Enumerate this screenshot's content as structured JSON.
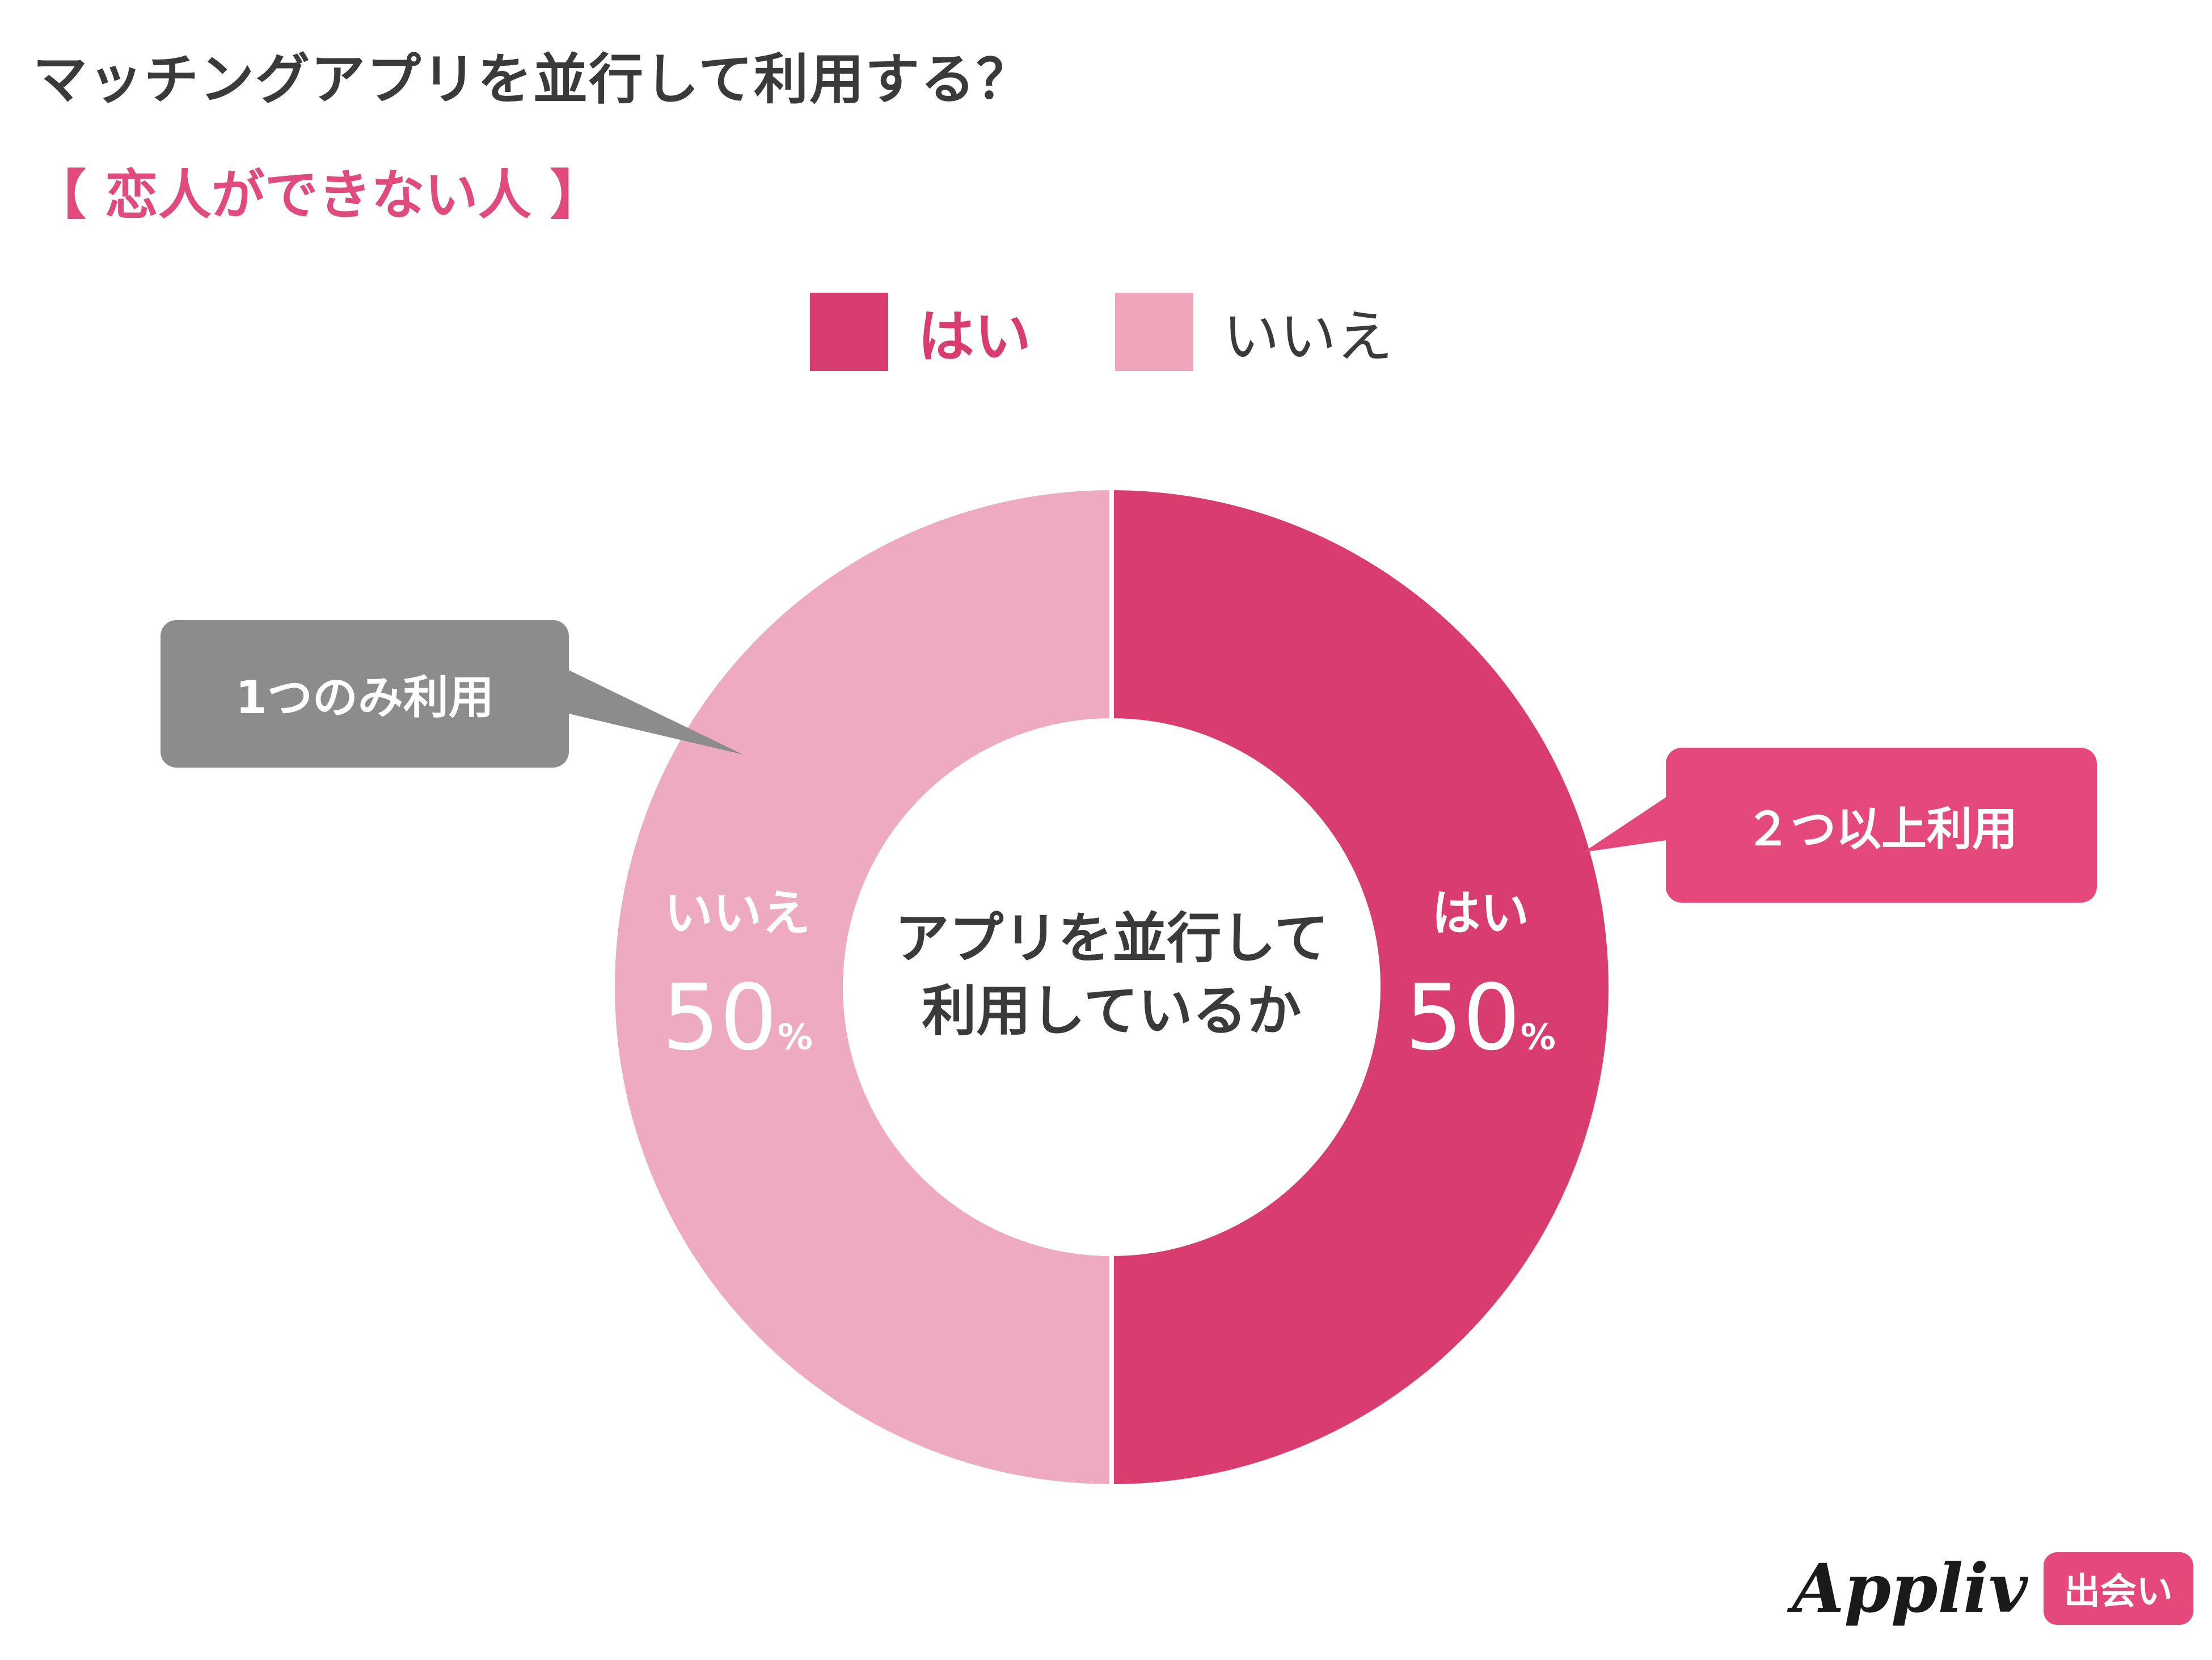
{
  "title": "マッチングアプリを並行して利用する？",
  "subtitle": "【 恋人ができない人 】",
  "legend": [
    {
      "label": "はい",
      "color": "#d93c6e"
    },
    {
      "label": "いいえ",
      "color": "#f0a5bb"
    }
  ],
  "chart_data": {
    "type": "pie",
    "title": "マッチングアプリを並行して利用する？",
    "subtitle": "【 恋人ができない人 】",
    "center_label_lines": [
      "アプリを並行して",
      "利用しているか"
    ],
    "unit": "%",
    "donut": true,
    "legend_position": "top",
    "slices": [
      {
        "label": "はい",
        "value": 50,
        "color": "#d93c6e",
        "annotation": "２つ以上利用"
      },
      {
        "label": "いいえ",
        "value": 50,
        "color": "#eeaac0",
        "annotation": "1つのみ利用"
      }
    ]
  },
  "callouts": {
    "left": "1つのみ利用",
    "right": "２つ以上利用"
  },
  "slice_labels": {
    "yes": {
      "label": "はい",
      "value": "50",
      "unit": "%"
    },
    "no": {
      "label": "いいえ",
      "value": "50",
      "unit": "%"
    }
  },
  "brand": {
    "name": "Appliv",
    "tag": "出会い"
  }
}
